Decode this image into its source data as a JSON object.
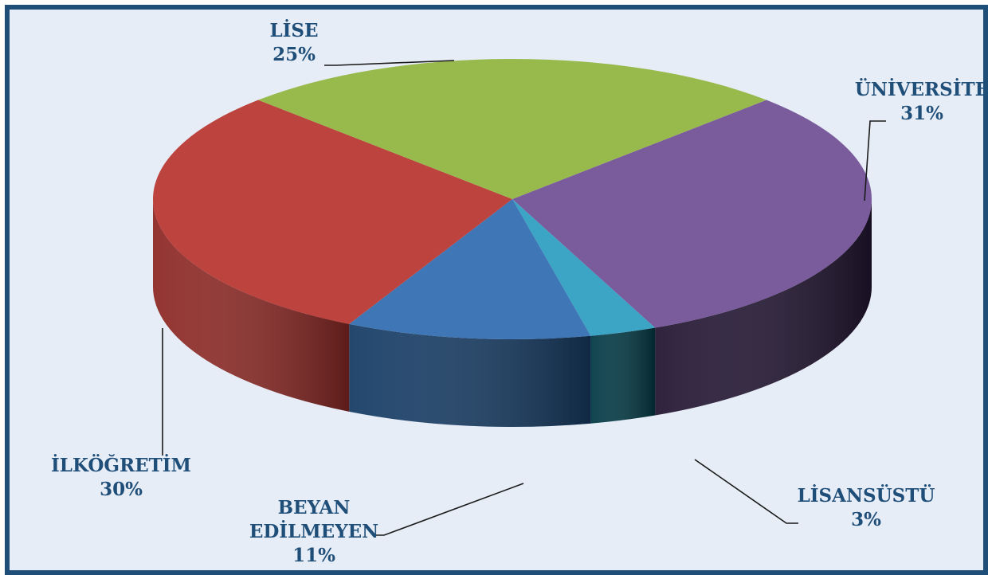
{
  "chart_data": {
    "type": "pie",
    "style": "3d",
    "slices": [
      {
        "name": "ÜNİVERSİTE",
        "lines": [
          "ÜNİVERSİTE"
        ],
        "percent_label": "31%",
        "value": 31,
        "color": "#7a5b9c",
        "side_color": "#241734"
      },
      {
        "name": "LİSANSÜSTÜ",
        "lines": [
          "LİSANSÜSTÜ"
        ],
        "percent_label": "3%",
        "value": 3,
        "color": "#3ca4c4",
        "side_color": "#033a46"
      },
      {
        "name": "BEYAN EDİLMEYEN",
        "lines": [
          "BEYAN",
          "EDİLMEYEN"
        ],
        "percent_label": "11%",
        "value": 11,
        "color": "#3f76b6",
        "side_color": "#173d66"
      },
      {
        "name": "İLKÖĞRETİM",
        "lines": [
          "İLKÖĞRETİM"
        ],
        "percent_label": "30%",
        "value": 30,
        "color": "#bd433f",
        "side_color": "#8e2a26"
      },
      {
        "name": "LİSE",
        "lines": [
          "LİSE"
        ],
        "percent_label": "25%",
        "value": 25,
        "color": "#98b94c",
        "side_color": "#5e7a2a"
      }
    ],
    "frame_color": "#1f4e79",
    "background_color": "#e6edf6",
    "label_color": "#1f4e79"
  }
}
